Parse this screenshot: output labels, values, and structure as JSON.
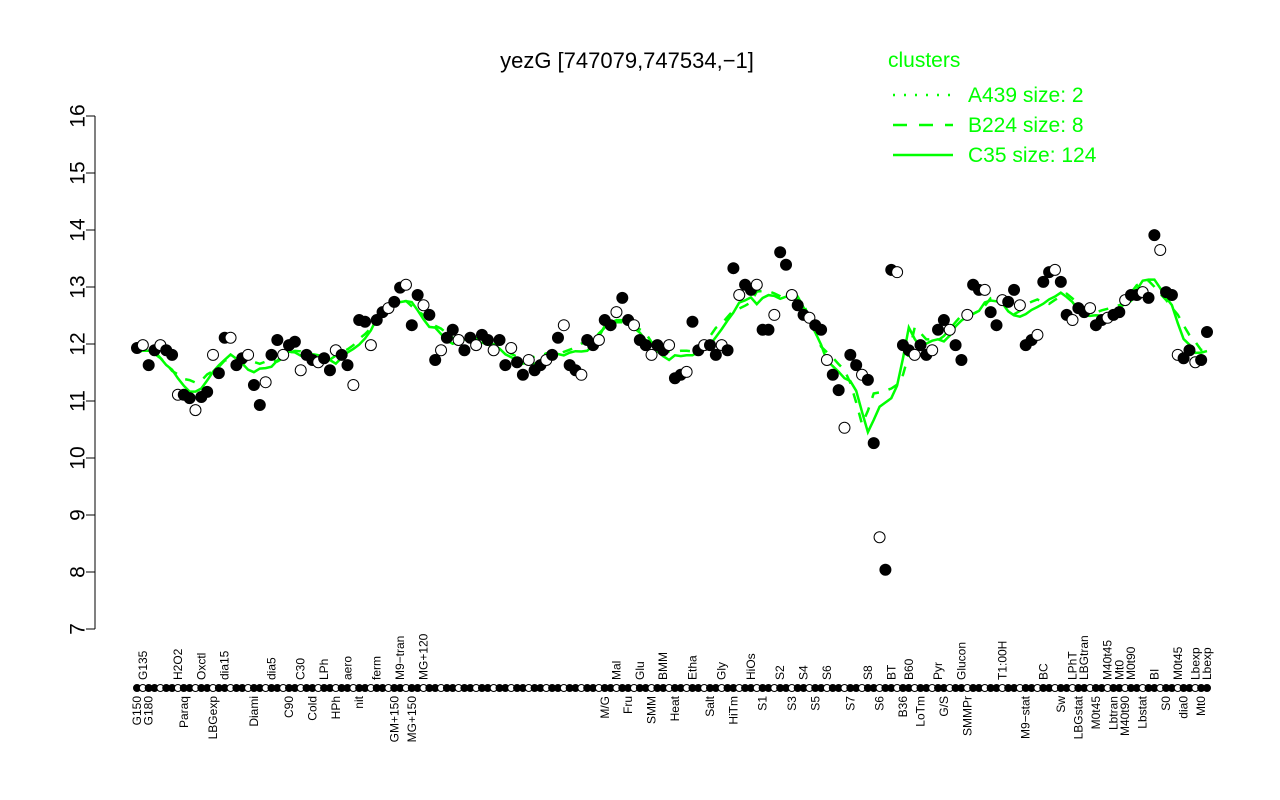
{
  "chart_data": {
    "type": "line",
    "title": "yezG [747079,747534,−1]",
    "xlabel": "",
    "ylabel": "",
    "ylim": [
      7,
      16
    ],
    "yticks": [
      7,
      8,
      9,
      10,
      11,
      12,
      13,
      14,
      15,
      16
    ],
    "grid": false,
    "legend": {
      "title": "clusters",
      "placement": "top-right",
      "entries": [
        {
          "label": "A439 size: 2",
          "style": "dotted"
        },
        {
          "label": "B224 size: 8",
          "style": "dashed"
        },
        {
          "label": "C35 size: 124",
          "style": "solid"
        }
      ]
    },
    "colors": {
      "line": "#00ff00",
      "points": "#000000",
      "text": "#000000"
    },
    "points": [
      [
        11.93,
        "G150"
      ],
      [
        11.98,
        "G135"
      ],
      [
        11.63,
        "G180"
      ],
      [
        11.89,
        ""
      ],
      [
        11.98,
        ""
      ],
      [
        11.89,
        ""
      ],
      [
        11.81,
        ""
      ],
      [
        11.11,
        "H2O2"
      ],
      [
        11.11,
        "Paraq"
      ],
      [
        11.05,
        ""
      ],
      [
        10.84,
        ""
      ],
      [
        11.07,
        "Oxctl"
      ],
      [
        11.16,
        ""
      ],
      [
        11.81,
        "LBGexp"
      ],
      [
        11.49,
        ""
      ],
      [
        12.11,
        "dia15"
      ],
      [
        12.11,
        ""
      ],
      [
        11.63,
        ""
      ],
      [
        11.75,
        ""
      ],
      [
        11.81,
        ""
      ],
      [
        11.28,
        "Diami"
      ],
      [
        10.93,
        ""
      ],
      [
        11.33,
        ""
      ],
      [
        11.81,
        "dia5"
      ],
      [
        12.07,
        ""
      ],
      [
        11.81,
        ""
      ],
      [
        11.98,
        "C90"
      ],
      [
        12.04,
        ""
      ],
      [
        11.54,
        "C30"
      ],
      [
        11.81,
        ""
      ],
      [
        11.72,
        "Cold"
      ],
      [
        11.68,
        ""
      ],
      [
        11.75,
        "LPh"
      ],
      [
        11.54,
        ""
      ],
      [
        11.89,
        "HPh"
      ],
      [
        11.81,
        ""
      ],
      [
        11.63,
        "aero"
      ],
      [
        11.28,
        ""
      ],
      [
        12.42,
        "nit"
      ],
      [
        12.39,
        ""
      ],
      [
        11.98,
        ""
      ],
      [
        12.42,
        "ferm"
      ],
      [
        12.56,
        ""
      ],
      [
        12.63,
        ""
      ],
      [
        12.74,
        "GM+150"
      ],
      [
        12.99,
        "M9−tran"
      ],
      [
        13.04,
        ""
      ],
      [
        12.33,
        "MG+150"
      ],
      [
        12.86,
        ""
      ],
      [
        12.68,
        "MG+120"
      ],
      [
        12.51,
        ""
      ],
      [
        11.72,
        ""
      ],
      [
        11.89,
        ""
      ],
      [
        12.11,
        ""
      ],
      [
        12.25,
        ""
      ],
      [
        12.07,
        ""
      ],
      [
        11.89,
        ""
      ],
      [
        12.11,
        ""
      ],
      [
        11.98,
        ""
      ],
      [
        12.16,
        ""
      ],
      [
        12.07,
        ""
      ],
      [
        11.89,
        ""
      ],
      [
        12.07,
        ""
      ],
      [
        11.63,
        ""
      ],
      [
        11.93,
        ""
      ],
      [
        11.68,
        ""
      ],
      [
        11.46,
        ""
      ],
      [
        11.72,
        ""
      ],
      [
        11.54,
        ""
      ],
      [
        11.63,
        ""
      ],
      [
        11.72,
        ""
      ],
      [
        11.81,
        ""
      ],
      [
        12.11,
        ""
      ],
      [
        12.33,
        ""
      ],
      [
        11.63,
        ""
      ],
      [
        11.54,
        ""
      ],
      [
        11.46,
        ""
      ],
      [
        12.07,
        ""
      ],
      [
        11.98,
        ""
      ],
      [
        12.07,
        ""
      ],
      [
        12.42,
        "M/G"
      ],
      [
        12.33,
        ""
      ],
      [
        12.56,
        "Mal"
      ],
      [
        12.81,
        ""
      ],
      [
        12.42,
        "Fru"
      ],
      [
        12.33,
        ""
      ],
      [
        12.07,
        "Glu"
      ],
      [
        11.98,
        ""
      ],
      [
        11.81,
        "SMM"
      ],
      [
        11.98,
        ""
      ],
      [
        11.89,
        "BMM"
      ],
      [
        11.98,
        ""
      ],
      [
        11.4,
        "Heat"
      ],
      [
        11.46,
        ""
      ],
      [
        11.51,
        ""
      ],
      [
        12.39,
        "Etha"
      ],
      [
        11.89,
        ""
      ],
      [
        11.98,
        ""
      ],
      [
        11.98,
        "Salt"
      ],
      [
        11.81,
        ""
      ],
      [
        11.98,
        "Gly"
      ],
      [
        11.89,
        ""
      ],
      [
        13.33,
        "HiTm"
      ],
      [
        12.86,
        ""
      ],
      [
        13.04,
        ""
      ],
      [
        12.95,
        "HiOs"
      ],
      [
        13.04,
        ""
      ],
      [
        12.25,
        "S1"
      ],
      [
        12.25,
        ""
      ],
      [
        12.51,
        ""
      ],
      [
        13.61,
        "S2"
      ],
      [
        13.39,
        ""
      ],
      [
        12.86,
        "S3"
      ],
      [
        12.68,
        ""
      ],
      [
        12.51,
        "S4"
      ],
      [
        12.46,
        ""
      ],
      [
        12.33,
        "S5"
      ],
      [
        12.25,
        ""
      ],
      [
        11.72,
        "S6"
      ],
      [
        11.46,
        ""
      ],
      [
        11.19,
        ""
      ],
      [
        10.53,
        ""
      ],
      [
        11.81,
        "S7"
      ],
      [
        11.63,
        ""
      ],
      [
        11.46,
        ""
      ],
      [
        11.37,
        "S8"
      ],
      [
        10.26,
        ""
      ],
      [
        8.61,
        "S6"
      ],
      [
        8.04,
        ""
      ],
      [
        13.3,
        "BT"
      ],
      [
        13.26,
        ""
      ],
      [
        11.98,
        "B36"
      ],
      [
        11.89,
        "B60"
      ],
      [
        11.81,
        ""
      ],
      [
        11.98,
        "LoTm"
      ],
      [
        11.81,
        ""
      ],
      [
        11.89,
        ""
      ],
      [
        12.25,
        "Pyr"
      ],
      [
        12.42,
        "G/S"
      ],
      [
        12.25,
        ""
      ],
      [
        11.98,
        ""
      ],
      [
        11.72,
        "Glucon"
      ],
      [
        12.51,
        "SMMPr"
      ],
      [
        13.04,
        ""
      ],
      [
        12.95,
        ""
      ],
      [
        12.95,
        ""
      ],
      [
        12.56,
        ""
      ],
      [
        12.33,
        ""
      ],
      [
        12.77,
        "T1:00H"
      ],
      [
        12.74,
        ""
      ],
      [
        12.95,
        ""
      ],
      [
        12.68,
        ""
      ],
      [
        11.98,
        "M9−stat"
      ],
      [
        12.07,
        ""
      ],
      [
        12.16,
        ""
      ],
      [
        13.09,
        "BC"
      ],
      [
        13.26,
        ""
      ],
      [
        13.3,
        ""
      ],
      [
        13.09,
        "Sw"
      ],
      [
        12.51,
        ""
      ],
      [
        12.42,
        "LPhT"
      ],
      [
        12.63,
        "LBGstat"
      ],
      [
        12.56,
        "LBGtran"
      ],
      [
        12.63,
        ""
      ],
      [
        12.33,
        "M0t45"
      ],
      [
        12.42,
        ""
      ],
      [
        12.46,
        "M40t45"
      ],
      [
        12.51,
        "Lbtran"
      ],
      [
        12.56,
        "Mt0"
      ],
      [
        12.77,
        "M40t90"
      ],
      [
        12.86,
        "M0t90"
      ],
      [
        12.86,
        ""
      ],
      [
        12.91,
        "Lbstat"
      ],
      [
        12.81,
        ""
      ],
      [
        13.91,
        "BI"
      ],
      [
        13.65,
        ""
      ],
      [
        12.91,
        "S0"
      ],
      [
        12.86,
        ""
      ],
      [
        11.81,
        "M0t45"
      ],
      [
        11.75,
        "dia0"
      ],
      [
        11.89,
        ""
      ],
      [
        11.68,
        "Lbexp"
      ],
      [
        11.72,
        "Mt0"
      ],
      [
        12.21,
        "Lbexp"
      ]
    ]
  }
}
